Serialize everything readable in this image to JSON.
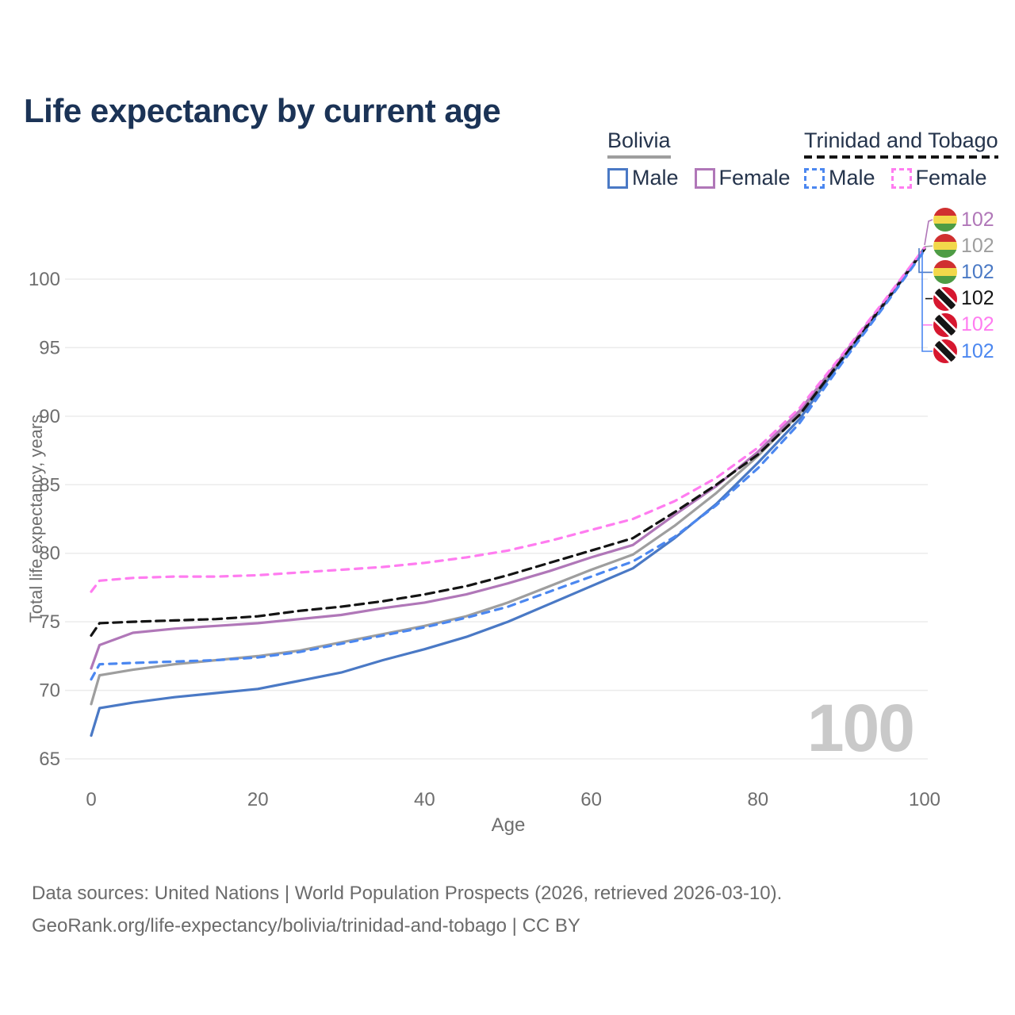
{
  "title": "Life expectancy by current age",
  "legend": {
    "groups": [
      {
        "id": "bolivia",
        "label": "Bolivia",
        "line_style": "solid",
        "line_color": "#9e9e9e",
        "items": [
          {
            "label": "Male",
            "swatch_color": "#4a79c5",
            "dashed": false
          },
          {
            "label": "Female",
            "swatch_color": "#b077b8",
            "dashed": false
          }
        ]
      },
      {
        "id": "trinidad-and-tobago",
        "label": "Trinidad and Tobago",
        "line_style": "dashed",
        "line_color": "#141414",
        "items": [
          {
            "label": "Male",
            "swatch_color": "#4b87f0",
            "dashed": true
          },
          {
            "label": "Female",
            "swatch_color": "#ff7cf0",
            "dashed": true
          }
        ]
      }
    ]
  },
  "chart_data": {
    "type": "line",
    "title": "Life expectancy by current age",
    "xlabel": "Age",
    "ylabel": "Total life expectancy, years",
    "x_ticks": [
      0,
      20,
      40,
      60,
      80,
      100
    ],
    "y_ticks": [
      65,
      70,
      75,
      80,
      85,
      90,
      95,
      100
    ],
    "xlim": [
      0,
      100
    ],
    "ylim": [
      65,
      103
    ],
    "grid": "horizontal",
    "legend_position": "top-right",
    "ages": [
      0,
      1,
      5,
      10,
      15,
      20,
      25,
      30,
      35,
      40,
      45,
      50,
      55,
      60,
      65,
      70,
      75,
      80,
      85,
      90,
      95,
      100
    ],
    "series": [
      {
        "name": "Bolivia Male",
        "country": "Bolivia",
        "sex": "male",
        "color": "#4a79c5",
        "dashed": false,
        "values": [
          66.7,
          68.7,
          69.1,
          69.5,
          69.8,
          70.1,
          70.7,
          71.3,
          72.2,
          73.0,
          73.9,
          75.0,
          76.3,
          77.6,
          78.9,
          81.1,
          83.6,
          86.6,
          89.8,
          94.0,
          98.0,
          102.2
        ]
      },
      {
        "name": "Bolivia",
        "country": "Bolivia",
        "sex": "both",
        "color": "#9e9e9e",
        "dashed": false,
        "values": [
          69.0,
          71.1,
          71.5,
          71.9,
          72.2,
          72.5,
          72.9,
          73.5,
          74.1,
          74.7,
          75.4,
          76.4,
          77.6,
          78.8,
          79.9,
          82.0,
          84.4,
          87.1,
          90.2,
          94.2,
          98.1,
          102.3
        ]
      },
      {
        "name": "Bolivia Female",
        "country": "Bolivia",
        "sex": "female",
        "color": "#b077b8",
        "dashed": false,
        "values": [
          71.6,
          73.3,
          74.2,
          74.5,
          74.7,
          74.9,
          75.2,
          75.5,
          76.0,
          76.4,
          77.0,
          77.8,
          78.7,
          79.7,
          80.6,
          82.8,
          84.9,
          87.4,
          90.4,
          94.3,
          98.2,
          102.3
        ]
      },
      {
        "name": "Trinidad and Tobago",
        "country": "Trinidad and Tobago",
        "sex": "both",
        "color": "#141414",
        "dashed": true,
        "values": [
          74.0,
          74.9,
          75.0,
          75.1,
          75.2,
          75.4,
          75.8,
          76.1,
          76.5,
          77.0,
          77.6,
          78.4,
          79.3,
          80.2,
          81.1,
          83.0,
          85.0,
          87.2,
          90.1,
          94.1,
          98.1,
          102.2
        ]
      },
      {
        "name": "Trinidad and Tobago Female",
        "country": "Trinidad and Tobago",
        "sex": "female",
        "color": "#ff7cf0",
        "dashed": true,
        "values": [
          77.2,
          78.0,
          78.2,
          78.3,
          78.3,
          78.4,
          78.6,
          78.8,
          79.0,
          79.3,
          79.7,
          80.2,
          80.9,
          81.7,
          82.5,
          83.8,
          85.5,
          87.7,
          90.6,
          94.4,
          98.3,
          102.3
        ]
      },
      {
        "name": "Trinidad and Tobago Male",
        "country": "Trinidad and Tobago",
        "sex": "male",
        "color": "#4b87f0",
        "dashed": true,
        "values": [
          70.8,
          71.9,
          72.0,
          72.1,
          72.2,
          72.4,
          72.8,
          73.4,
          74.0,
          74.6,
          75.3,
          76.1,
          77.2,
          78.3,
          79.4,
          81.2,
          83.5,
          86.2,
          89.5,
          93.8,
          97.9,
          102.1
        ]
      }
    ],
    "end_labels": [
      {
        "series": "Bolivia Female",
        "flag": "bolivia",
        "value": "102",
        "color": "#b077b8"
      },
      {
        "series": "Bolivia",
        "flag": "bolivia",
        "value": "102",
        "color": "#9e9e9e"
      },
      {
        "series": "Bolivia Male",
        "flag": "bolivia",
        "value": "102",
        "color": "#4a79c5"
      },
      {
        "series": "Trinidad and Tobago",
        "flag": "trinidad-and-tobago",
        "value": "102",
        "color": "#141414"
      },
      {
        "series": "Trinidad and Tobago Female",
        "flag": "trinidad-and-tobago",
        "value": "102",
        "color": "#ff7cf0"
      },
      {
        "series": "Trinidad and Tobago Male",
        "flag": "trinidad-and-tobago",
        "value": "102",
        "color": "#4b87f0"
      }
    ],
    "age_indicator": "100"
  },
  "colors": {
    "title_text": "#1b3356",
    "legend_text": "#25344c",
    "axis_text": "#6e6e6e",
    "gridline": "#ebebeb",
    "watermark": "#c9c9c9",
    "footer_text": "#6b6b6b",
    "flag_bolivia": [
      "#d03030",
      "#f2d84b",
      "#4e9c44"
    ],
    "flag_trinidad": [
      "#d6172f",
      "#ffffff",
      "#151515"
    ]
  },
  "footer": {
    "line1": "Data sources: United Nations | World Population Prospects (2026, retrieved 2026-03-10).",
    "line2": "GeoRank.org/life-expectancy/bolivia/trinidad-and-tobago | CC BY"
  }
}
